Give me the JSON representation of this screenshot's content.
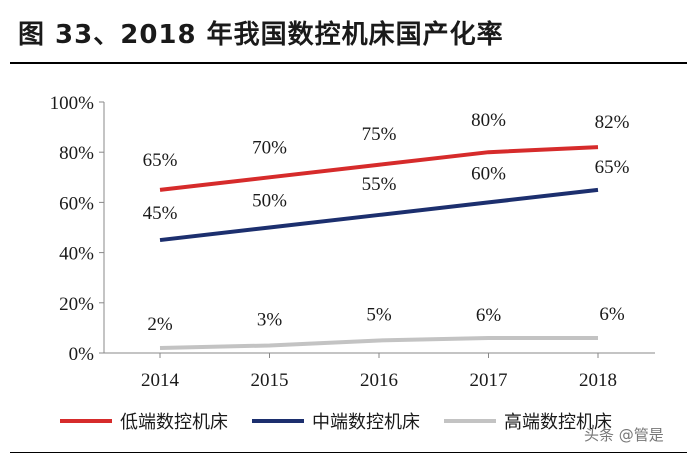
{
  "title": "图 33、2018 年我国数控机床国产化率",
  "watermark": "头条 @管是",
  "chart_data": {
    "type": "line",
    "x": [
      "2014",
      "2015",
      "2016",
      "2017",
      "2018"
    ],
    "ylim": [
      0,
      100
    ],
    "yticks": [
      0,
      20,
      40,
      60,
      80,
      100
    ],
    "ytick_labels": [
      "0%",
      "20%",
      "40%",
      "60%",
      "80%",
      "100%"
    ],
    "grid": false,
    "legend_position": "bottom",
    "series": [
      {
        "name": "低端数控机床",
        "color": "#d62b2b",
        "values": [
          65,
          70,
          75,
          80,
          82
        ],
        "labels": [
          "65%",
          "70%",
          "75%",
          "80%",
          "82%"
        ]
      },
      {
        "name": "中端数控机床",
        "color": "#1c2f6e",
        "values": [
          45,
          50,
          55,
          60,
          65
        ],
        "labels": [
          "45%",
          "50%",
          "55%",
          "60%",
          "65%"
        ]
      },
      {
        "name": "高端数控机床",
        "color": "#c3c3c3",
        "values": [
          2,
          3,
          5,
          6,
          6
        ],
        "labels": [
          "2%",
          "3%",
          "5%",
          "6%",
          "6%"
        ]
      }
    ]
  }
}
